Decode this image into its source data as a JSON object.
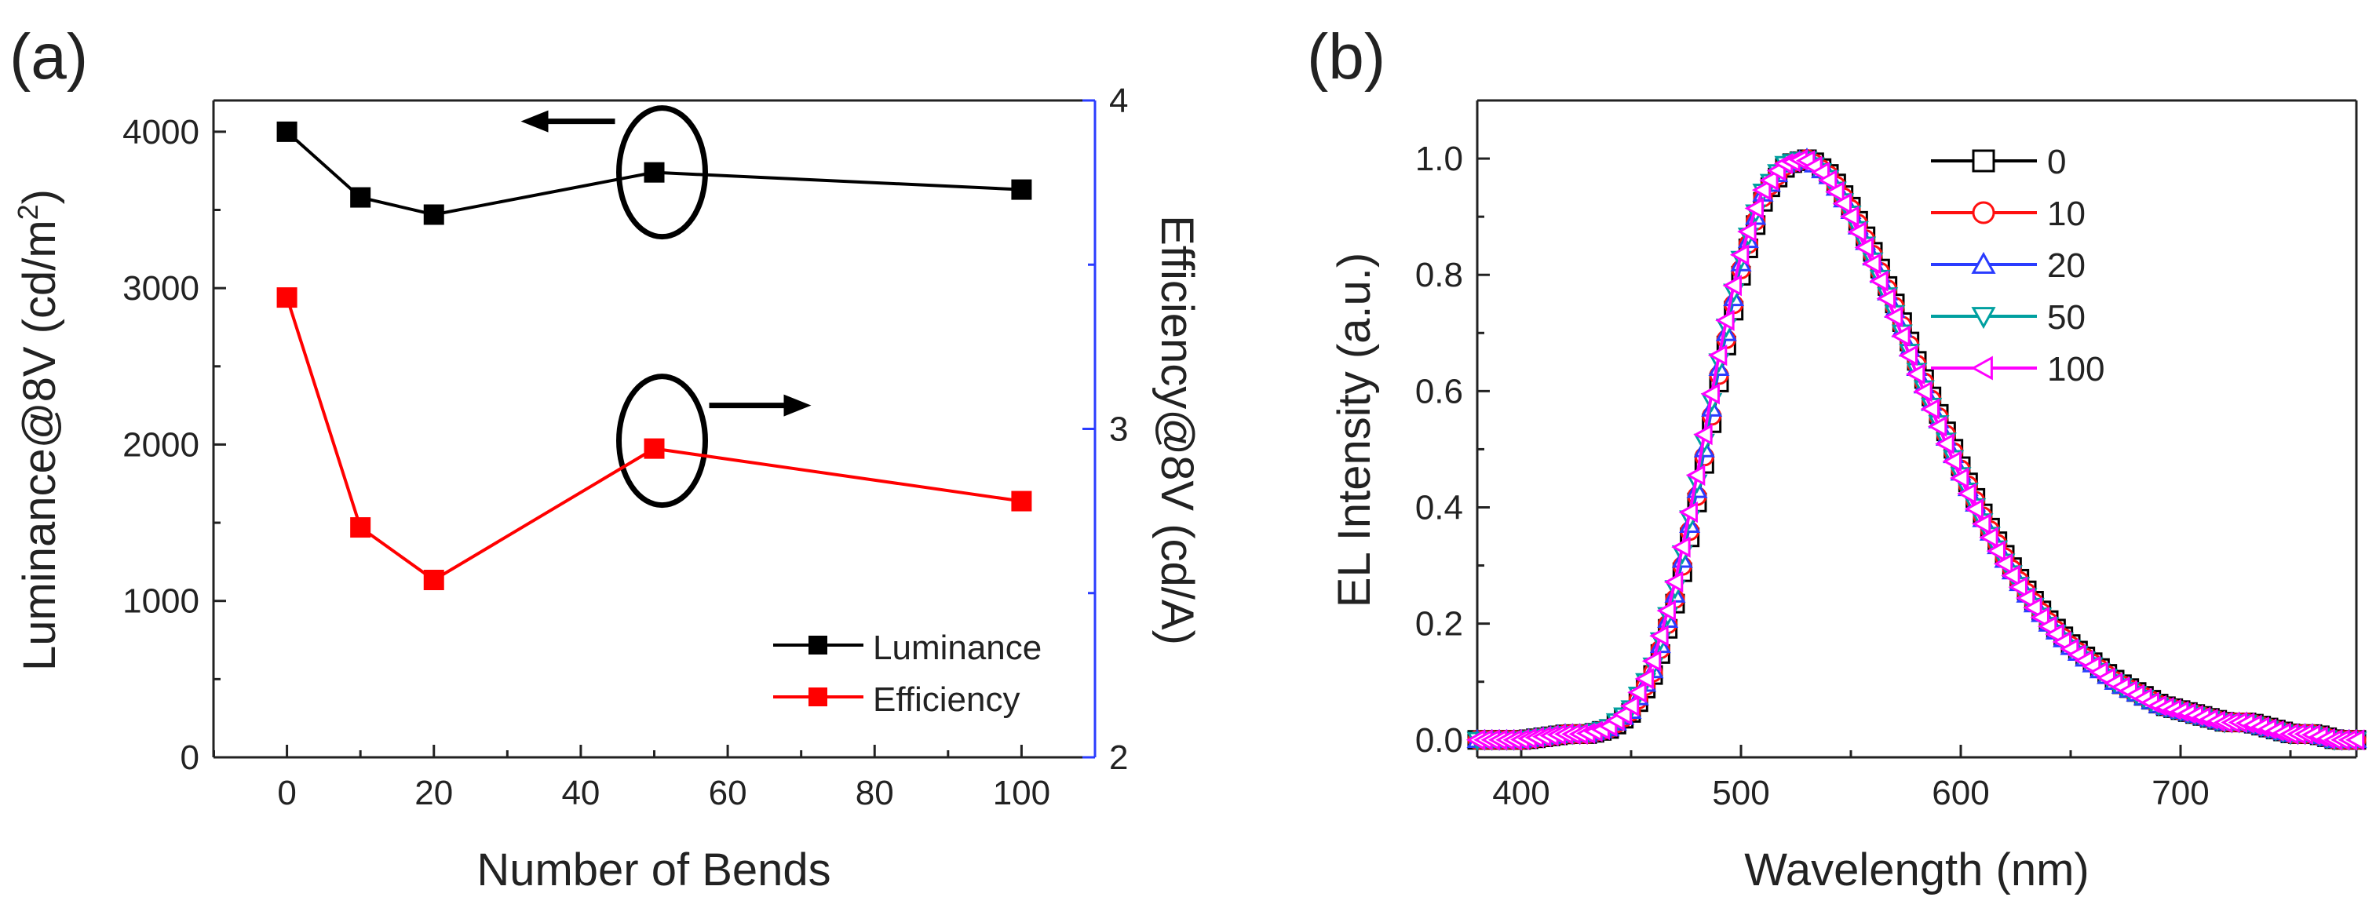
{
  "colors": {
    "luminance": "#000000",
    "efficiency": "#ff0000",
    "right_axis": "#2a3cff",
    "s0": "#000000",
    "s10": "#ff1010",
    "s20": "#2a3cff",
    "s50": "#00a0a0",
    "s100": "#ff00ff"
  },
  "chart_data": [
    {
      "type": "line",
      "panel_label": "(a)",
      "xlabel": "Number of Bends",
      "ylabel_left": "Luminance@8V (cd/m",
      "ylabel_left_sup": "2",
      "ylabel_left_tail": ")",
      "ylabel_right": "Efficiency@8V (cd/A)",
      "xlim": [
        -10,
        110
      ],
      "ylim_left": [
        0,
        4200
      ],
      "ylim_right": [
        2,
        4
      ],
      "x_ticks": [
        0,
        20,
        40,
        60,
        80,
        100
      ],
      "x_tick_labels": [
        "0",
        "20",
        "40",
        "60",
        "80",
        "100"
      ],
      "y_left_ticks": [
        0,
        1000,
        2000,
        3000,
        4000
      ],
      "y_left_tick_labels": [
        "0",
        "1000",
        "2000",
        "3000",
        "4000"
      ],
      "y_right_ticks": [
        2,
        3,
        4
      ],
      "y_right_tick_labels": [
        "2",
        "3",
        "4"
      ],
      "series": [
        {
          "name": "Luminance",
          "axis": "left",
          "x": [
            0,
            10,
            20,
            50,
            100
          ],
          "y": [
            4000,
            3580,
            3470,
            3740,
            3630
          ]
        },
        {
          "name": "Efficiency",
          "axis": "right",
          "x": [
            0,
            10,
            20,
            50,
            100
          ],
          "y": [
            3.4,
            2.7,
            2.54,
            2.94,
            2.78
          ]
        }
      ],
      "legend_position": "bottom-right",
      "annotations": [
        {
          "shape": "ellipse",
          "x": 50,
          "y": 3740,
          "axis": "left",
          "arrow": "left"
        },
        {
          "shape": "ellipse",
          "x": 50,
          "y": 2.94,
          "axis": "right",
          "arrow": "right"
        }
      ]
    },
    {
      "type": "line",
      "panel_label": "(b)",
      "xlabel": "Wavelength (nm)",
      "ylabel": "EL Intensity (a.u.)",
      "xlim": [
        380,
        780
      ],
      "ylim": [
        -0.03,
        1.1
      ],
      "x_ticks": [
        400,
        500,
        600,
        700
      ],
      "x_tick_labels": [
        "400",
        "500",
        "600",
        "700"
      ],
      "y_ticks": [
        0.0,
        0.2,
        0.4,
        0.6,
        0.8,
        1.0
      ],
      "y_tick_labels": [
        "0.0",
        "0.2",
        "0.4",
        "0.6",
        "0.8",
        "1.0"
      ],
      "legend_position": "top-right",
      "spectrum": {
        "x": [
          380,
          400,
          420,
          430,
          440,
          450,
          460,
          470,
          480,
          490,
          500,
          510,
          520,
          530,
          540,
          550,
          560,
          570,
          580,
          590,
          600,
          610,
          620,
          630,
          640,
          650,
          660,
          670,
          680,
          690,
          700,
          710,
          720,
          730,
          740,
          750,
          760,
          770,
          780
        ],
        "y": [
          0.0,
          0.0,
          0.01,
          0.01,
          0.02,
          0.05,
          0.12,
          0.25,
          0.43,
          0.64,
          0.82,
          0.94,
          0.99,
          1.0,
          0.97,
          0.91,
          0.83,
          0.74,
          0.64,
          0.55,
          0.46,
          0.38,
          0.31,
          0.25,
          0.2,
          0.16,
          0.13,
          0.1,
          0.08,
          0.06,
          0.05,
          0.04,
          0.03,
          0.03,
          0.02,
          0.01,
          0.01,
          0.0,
          0.0
        ]
      },
      "series": [
        {
          "name": "0",
          "marker": "square",
          "color_key": "s0"
        },
        {
          "name": "10",
          "marker": "circle",
          "color_key": "s10"
        },
        {
          "name": "20",
          "marker": "triangle-up",
          "color_key": "s20"
        },
        {
          "name": "50",
          "marker": "triangle-down",
          "color_key": "s50"
        },
        {
          "name": "100",
          "marker": "triangle-left",
          "color_key": "s100"
        }
      ]
    }
  ]
}
